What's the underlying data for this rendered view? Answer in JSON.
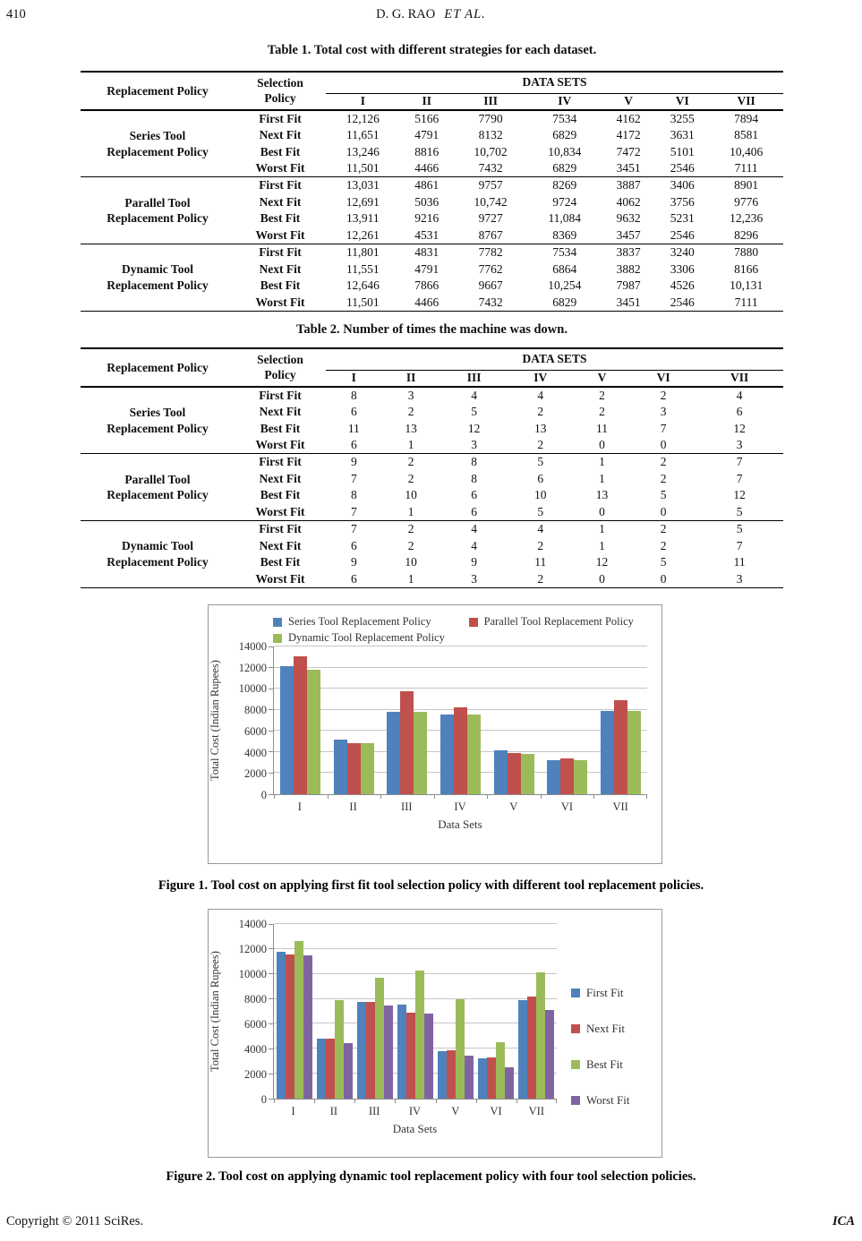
{
  "header": {
    "page_number": "410",
    "author": "D. G. RAO",
    "et_al": "ET  AL."
  },
  "footer": {
    "left": "Copyright © 2011 SciRes.",
    "right": "ICA"
  },
  "table1": {
    "title": "Table 1. Total cost with different strategies for each dataset.",
    "col_replacement": "Replacement Policy",
    "col_selection": "Selection Policy",
    "datasets_header": "DATA SETS",
    "dataset_cols": [
      "I",
      "II",
      "III",
      "IV",
      "V",
      "VI",
      "VII"
    ],
    "groups": [
      {
        "label_lines": [
          "Series Tool",
          "Replacement Policy"
        ],
        "rows": [
          {
            "label": "First Fit",
            "values": [
              "12,126",
              "5166",
              "7790",
              "7534",
              "4162",
              "3255",
              "7894"
            ]
          },
          {
            "label": "Next Fit",
            "values": [
              "11,651",
              "4791",
              "8132",
              "6829",
              "4172",
              "3631",
              "8581"
            ]
          },
          {
            "label": "Best Fit",
            "values": [
              "13,246",
              "8816",
              "10,702",
              "10,834",
              "7472",
              "5101",
              "10,406"
            ]
          },
          {
            "label": "Worst Fit",
            "values": [
              "11,501",
              "4466",
              "7432",
              "6829",
              "3451",
              "2546",
              "7111"
            ]
          }
        ]
      },
      {
        "label_lines": [
          "Parallel Tool",
          "Replacement Policy"
        ],
        "rows": [
          {
            "label": "First Fit",
            "values": [
              "13,031",
              "4861",
              "9757",
              "8269",
              "3887",
              "3406",
              "8901"
            ]
          },
          {
            "label": "Next Fit",
            "values": [
              "12,691",
              "5036",
              "10,742",
              "9724",
              "4062",
              "3756",
              "9776"
            ]
          },
          {
            "label": "Best Fit",
            "values": [
              "13,911",
              "9216",
              "9727",
              "11,084",
              "9632",
              "5231",
              "12,236"
            ]
          },
          {
            "label": "Worst Fit",
            "values": [
              "12,261",
              "4531",
              "8767",
              "8369",
              "3457",
              "2546",
              "8296"
            ]
          }
        ]
      },
      {
        "label_lines": [
          "Dynamic Tool",
          "Replacement Policy"
        ],
        "rows": [
          {
            "label": "First Fit",
            "values": [
              "11,801",
              "4831",
              "7782",
              "7534",
              "3837",
              "3240",
              "7880"
            ]
          },
          {
            "label": "Next Fit",
            "values": [
              "11,551",
              "4791",
              "7762",
              "6864",
              "3882",
              "3306",
              "8166"
            ]
          },
          {
            "label": "Best Fit",
            "values": [
              "12,646",
              "7866",
              "9667",
              "10,254",
              "7987",
              "4526",
              "10,131"
            ]
          },
          {
            "label": "Worst Fit",
            "values": [
              "11,501",
              "4466",
              "7432",
              "6829",
              "3451",
              "2546",
              "7111"
            ]
          }
        ]
      }
    ]
  },
  "table2": {
    "title": "Table 2. Number of times the machine was down.",
    "col_replacement": "Replacement Policy",
    "col_selection": "Selection Policy",
    "datasets_header": "DATA SETS",
    "dataset_cols": [
      "I",
      "II",
      "III",
      "IV",
      "V",
      "VI",
      "VII"
    ],
    "groups": [
      {
        "label_lines": [
          "Series Tool",
          "Replacement Policy"
        ],
        "rows": [
          {
            "label": "First Fit",
            "values": [
              "8",
              "3",
              "4",
              "4",
              "2",
              "2",
              "4"
            ]
          },
          {
            "label": "Next Fit",
            "values": [
              "6",
              "2",
              "5",
              "2",
              "2",
              "3",
              "6"
            ]
          },
          {
            "label": "Best Fit",
            "values": [
              "11",
              "13",
              "12",
              "13",
              "11",
              "7",
              "12"
            ]
          },
          {
            "label": "Worst Fit",
            "values": [
              "6",
              "1",
              "3",
              "2",
              "0",
              "0",
              "3"
            ]
          }
        ]
      },
      {
        "label_lines": [
          "Parallel Tool",
          "Replacement Policy"
        ],
        "rows": [
          {
            "label": "First Fit",
            "values": [
              "9",
              "2",
              "8",
              "5",
              "1",
              "2",
              "7"
            ]
          },
          {
            "label": "Next Fit",
            "values": [
              "7",
              "2",
              "8",
              "6",
              "1",
              "2",
              "7"
            ]
          },
          {
            "label": "Best Fit",
            "values": [
              "8",
              "10",
              "6",
              "10",
              "13",
              "5",
              "12"
            ]
          },
          {
            "label": "Worst Fit",
            "values": [
              "7",
              "1",
              "6",
              "5",
              "0",
              "0",
              "5"
            ]
          }
        ]
      },
      {
        "label_lines": [
          "Dynamic Tool",
          "Replacement Policy"
        ],
        "rows": [
          {
            "label": "First Fit",
            "values": [
              "7",
              "2",
              "4",
              "4",
              "1",
              "2",
              "5"
            ]
          },
          {
            "label": "Next Fit",
            "values": [
              "6",
              "2",
              "4",
              "2",
              "1",
              "2",
              "7"
            ]
          },
          {
            "label": "Best Fit",
            "values": [
              "9",
              "10",
              "9",
              "11",
              "12",
              "5",
              "11"
            ]
          },
          {
            "label": "Worst Fit",
            "values": [
              "6",
              "1",
              "3",
              "2",
              "0",
              "0",
              "3"
            ]
          }
        ]
      }
    ]
  },
  "figure1_caption": "Figure 1. Tool cost on applying first fit tool selection policy with different tool replacement policies.",
  "figure2_caption": "Figure 2. Tool cost on applying dynamic tool replacement policy with four tool selection policies.",
  "chart_data": [
    {
      "type": "bar",
      "title": "",
      "categories": [
        "I",
        "II",
        "III",
        "IV",
        "V",
        "VI",
        "VII"
      ],
      "series": [
        {
          "name": "Series Tool Replacement Policy",
          "color": "#4F81BD",
          "values": [
            12126,
            5166,
            7790,
            7534,
            4162,
            3255,
            7894
          ]
        },
        {
          "name": "Parallel Tool Replacement Policy",
          "color": "#C0504D",
          "values": [
            13031,
            4861,
            9757,
            8269,
            3887,
            3406,
            8901
          ]
        },
        {
          "name": "Dynamic Tool Replacement Policy",
          "color": "#9BBB59",
          "values": [
            11801,
            4831,
            7782,
            7534,
            3837,
            3240,
            7880
          ]
        }
      ],
      "xlabel": "Data Sets",
      "ylabel": "Total Cost (Indian Rupees)",
      "ylim": [
        0,
        14000
      ],
      "ytick_step": 2000,
      "grid": true,
      "legend_position": "top"
    },
    {
      "type": "bar",
      "title": "",
      "categories": [
        "I",
        "II",
        "III",
        "IV",
        "V",
        "VI",
        "VII"
      ],
      "series": [
        {
          "name": "First Fit",
          "color": "#4F81BD",
          "values": [
            11801,
            4831,
            7782,
            7534,
            3837,
            3240,
            7880
          ]
        },
        {
          "name": "Next Fit",
          "color": "#C0504D",
          "values": [
            11551,
            4791,
            7762,
            6864,
            3882,
            3306,
            8166
          ]
        },
        {
          "name": "Best Fit",
          "color": "#9BBB59",
          "values": [
            12646,
            7866,
            9667,
            10254,
            7987,
            4526,
            10131
          ]
        },
        {
          "name": "Worst Fit",
          "color": "#8064A2",
          "values": [
            11501,
            4466,
            7432,
            6829,
            3451,
            2546,
            7111
          ]
        }
      ],
      "xlabel": "Data Sets",
      "ylabel": "Total Cost (Indian Rupees)",
      "ylim": [
        0,
        14000
      ],
      "ytick_step": 2000,
      "grid": true,
      "legend_position": "right"
    }
  ]
}
